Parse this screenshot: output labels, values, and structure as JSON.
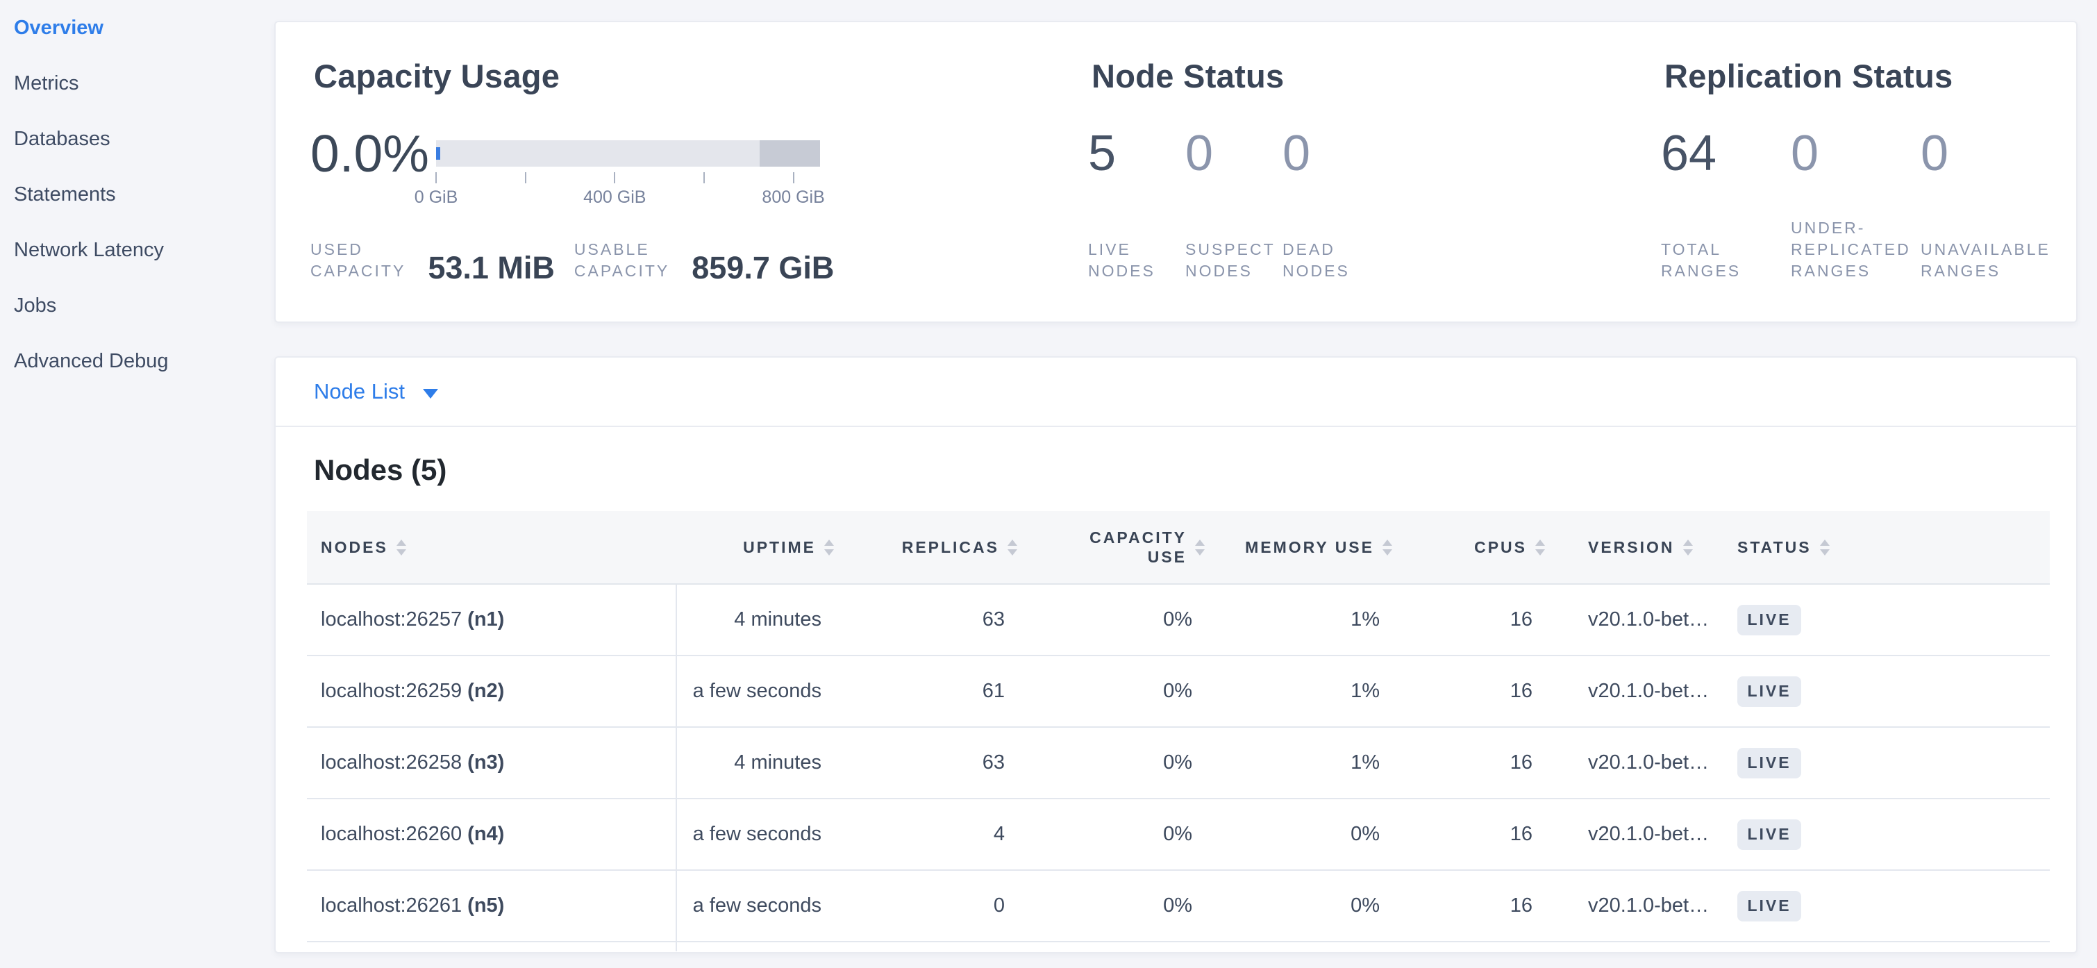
{
  "sidebar": {
    "items": [
      {
        "label": "Overview",
        "active": true
      },
      {
        "label": "Metrics",
        "active": false
      },
      {
        "label": "Databases",
        "active": false
      },
      {
        "label": "Statements",
        "active": false
      },
      {
        "label": "Network Latency",
        "active": false
      },
      {
        "label": "Jobs",
        "active": false
      },
      {
        "label": "Advanced Debug",
        "active": false
      }
    ]
  },
  "summary": {
    "capacity": {
      "title": "Capacity Usage",
      "percent": "0.0%",
      "used": {
        "label_lines": [
          "USED",
          "CAPACITY"
        ],
        "value": "53.1 MiB"
      },
      "usable": {
        "label_lines": [
          "USABLE",
          "CAPACITY"
        ],
        "value": "859.7 GiB"
      }
    },
    "node_status": {
      "title": "Node Status",
      "stats": [
        {
          "value": "5",
          "label_lines": [
            "LIVE",
            "NODES"
          ],
          "emphasis": "dark"
        },
        {
          "value": "0",
          "label_lines": [
            "SUSPECT",
            "NODES"
          ],
          "emphasis": "light"
        },
        {
          "value": "0",
          "label_lines": [
            "DEAD",
            "NODES"
          ],
          "emphasis": "light"
        }
      ]
    },
    "replication_status": {
      "title": "Replication Status",
      "stats": [
        {
          "value": "64",
          "label_lines": [
            "TOTAL",
            "RANGES"
          ],
          "emphasis": "dark"
        },
        {
          "value": "0",
          "label_lines": [
            "UNDER-",
            "REPLICATED",
            "RANGES"
          ],
          "emphasis": "light"
        },
        {
          "value": "0",
          "label_lines": [
            "UNAVAILABLE",
            "RANGES"
          ],
          "emphasis": "light"
        }
      ]
    }
  },
  "chart_data": {
    "type": "bar",
    "title": "Capacity Usage gauge",
    "used_percent": 0.0,
    "used_capacity": "53.1 MiB",
    "usable_capacity": "859.7 GiB",
    "axis_max_gib": 859.7,
    "ticks_gib": [
      0,
      200,
      400,
      600,
      800
    ],
    "tick_labels": [
      "0 GiB",
      "",
      "400 GiB",
      "",
      "800 GiB"
    ],
    "secondary_segment_start_fraction": 0.843
  },
  "node_list": {
    "label": "Node List"
  },
  "table": {
    "heading": "Nodes (5)",
    "columns": [
      {
        "label": "NODES",
        "align": "left"
      },
      {
        "label": "UPTIME",
        "align": "right"
      },
      {
        "label": "REPLICAS",
        "align": "right"
      },
      {
        "label": "CAPACITY USE",
        "align": "right",
        "two_line": [
          "CAPACITY",
          "USE"
        ]
      },
      {
        "label": "MEMORY USE",
        "align": "right"
      },
      {
        "label": "CPUS",
        "align": "right"
      },
      {
        "label": "VERSION",
        "align": "left"
      },
      {
        "label": "STATUS",
        "align": "left"
      }
    ],
    "rows": [
      {
        "node": "localhost:26257",
        "id": "(n1)",
        "uptime": "4 minutes",
        "replicas": "63",
        "capacity_use": "0%",
        "memory_use": "1%",
        "cpus": "16",
        "version": "v20.1.0-bet…",
        "status": "LIVE"
      },
      {
        "node": "localhost:26259",
        "id": "(n2)",
        "uptime": "a few seconds",
        "replicas": "61",
        "capacity_use": "0%",
        "memory_use": "1%",
        "cpus": "16",
        "version": "v20.1.0-bet…",
        "status": "LIVE"
      },
      {
        "node": "localhost:26258",
        "id": "(n3)",
        "uptime": "4 minutes",
        "replicas": "63",
        "capacity_use": "0%",
        "memory_use": "1%",
        "cpus": "16",
        "version": "v20.1.0-bet…",
        "status": "LIVE"
      },
      {
        "node": "localhost:26260",
        "id": "(n4)",
        "uptime": "a few seconds",
        "replicas": "4",
        "capacity_use": "0%",
        "memory_use": "0%",
        "cpus": "16",
        "version": "v20.1.0-bet…",
        "status": "LIVE"
      },
      {
        "node": "localhost:26261",
        "id": "(n5)",
        "uptime": "a few seconds",
        "replicas": "0",
        "capacity_use": "0%",
        "memory_use": "0%",
        "cpus": "16",
        "version": "v20.1.0-bet…",
        "status": "LIVE"
      }
    ]
  },
  "colors": {
    "accent_blue": "#2E7DE9",
    "gauge_used_blue": "#3A7DE1",
    "gauge_track": "#E4E6EC",
    "gauge_secondary": "#C7CBD5",
    "badge_bg": "#E7EBF2",
    "dark_text": "#394455",
    "muted_label": "#8A94AB"
  }
}
